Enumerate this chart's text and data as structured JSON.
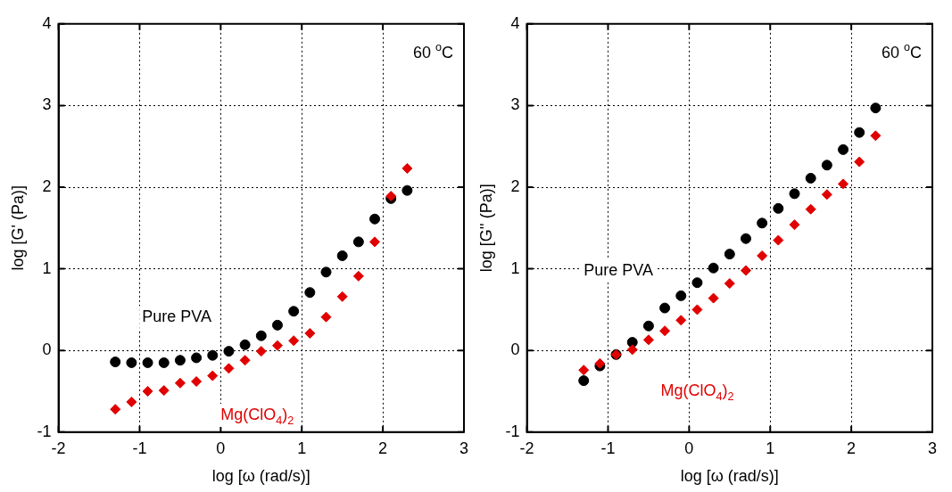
{
  "chart_data": [
    {
      "type": "scatter",
      "xlabel": "log [ω (rad/s)]",
      "ylabel": "log [G' (Pa)]",
      "xlim": [
        -2,
        3
      ],
      "xticks": [
        -2,
        -1,
        0,
        1,
        2,
        3
      ],
      "ylim": [
        -1,
        4
      ],
      "yticks": [
        -1,
        0,
        1,
        2,
        3,
        4
      ],
      "grid": true,
      "legend": false,
      "annotations": [
        "60 $^{o}$C"
      ],
      "x": [
        -1.3,
        -1.1,
        -0.9,
        -0.7,
        -0.5,
        -0.3,
        -0.1,
        0.1,
        0.3,
        0.5,
        0.7,
        0.9,
        1.1,
        1.3,
        1.5,
        1.7,
        1.9,
        2.1,
        2.3
      ],
      "series": [
        {
          "name": "Pure PVA",
          "color": "#000000",
          "marker": "circle",
          "values": [
            -0.14,
            -0.15,
            -0.15,
            -0.15,
            -0.12,
            -0.09,
            -0.06,
            -0.01,
            0.07,
            0.18,
            0.31,
            0.48,
            0.71,
            0.96,
            1.16,
            1.33,
            1.61,
            1.86,
            1.96
          ]
        },
        {
          "name": "Mg(ClO$_{4}$)$_{2}$",
          "color": "#e00000",
          "marker": "diamond",
          "values": [
            -0.72,
            -0.63,
            -0.5,
            -0.49,
            -0.4,
            -0.38,
            -0.31,
            -0.22,
            -0.12,
            -0.01,
            0.06,
            0.12,
            0.21,
            0.41,
            0.66,
            0.91,
            1.33,
            1.89,
            2.23
          ]
        }
      ]
    },
    {
      "type": "scatter",
      "xlabel": "log [ω (rad/s)]",
      "ylabel": "log [G'' (Pa)]",
      "xlim": [
        -2,
        3
      ],
      "xticks": [
        -2,
        -1,
        0,
        1,
        2,
        3
      ],
      "ylim": [
        -1,
        4
      ],
      "yticks": [
        -1,
        0,
        1,
        2,
        3,
        4
      ],
      "grid": true,
      "legend": false,
      "annotations": [
        "60 $^{o}$C"
      ],
      "x": [
        -1.3,
        -1.1,
        -0.9,
        -0.7,
        -0.5,
        -0.3,
        -0.1,
        0.1,
        0.3,
        0.5,
        0.7,
        0.9,
        1.1,
        1.3,
        1.5,
        1.7,
        1.9,
        2.1,
        2.3
      ],
      "series": [
        {
          "name": "Pure PVA",
          "color": "#000000",
          "marker": "circle",
          "values": [
            -0.37,
            -0.19,
            -0.05,
            0.1,
            0.3,
            0.52,
            0.67,
            0.83,
            1.01,
            1.18,
            1.37,
            1.56,
            1.74,
            1.92,
            2.11,
            2.27,
            2.46,
            2.67,
            2.97
          ]
        },
        {
          "name": "Mg(ClO$_{4}$)$_{2}$",
          "color": "#e00000",
          "marker": "diamond",
          "values": [
            -0.24,
            -0.16,
            -0.05,
            0.01,
            0.13,
            0.24,
            0.37,
            0.5,
            0.64,
            0.82,
            0.98,
            1.16,
            1.35,
            1.54,
            1.73,
            1.91,
            2.04,
            2.31,
            2.63
          ]
        }
      ]
    }
  ]
}
